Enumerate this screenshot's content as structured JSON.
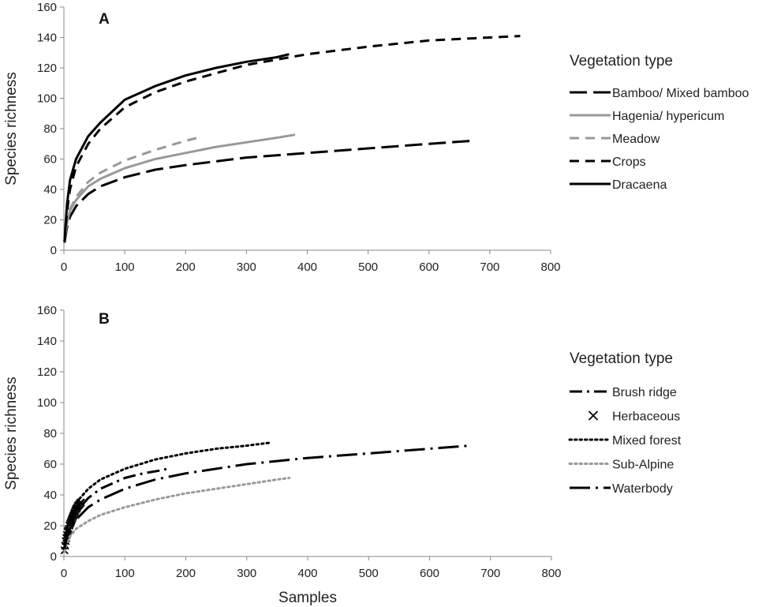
{
  "chart_data": [
    {
      "type": "line",
      "panel_label": "A",
      "xlabel": "",
      "ylabel": "Species richness",
      "xlim": [
        0,
        800
      ],
      "ylim": [
        0,
        160
      ],
      "xticks": [
        0,
        100,
        200,
        300,
        400,
        500,
        600,
        700,
        800
      ],
      "yticks": [
        0,
        20,
        40,
        60,
        80,
        100,
        120,
        140,
        160
      ],
      "legend_title": "Vegetation type",
      "legend_position": "right",
      "series": [
        {
          "name": "Bamboo/ Mixed bamboo",
          "color": "#000000",
          "style": "longdash",
          "x": [
            1,
            5,
            10,
            20,
            40,
            60,
            100,
            150,
            200,
            300,
            400,
            500,
            600,
            670
          ],
          "y": [
            5,
            15,
            22,
            29,
            37,
            42,
            48,
            53,
            56,
            61,
            64,
            67,
            70,
            72
          ]
        },
        {
          "name": "Hagenia/ hypericum",
          "color": "#999999",
          "style": "solid",
          "x": [
            1,
            5,
            10,
            20,
            40,
            60,
            100,
            150,
            200,
            250,
            300,
            350,
            380
          ],
          "y": [
            6,
            18,
            26,
            33,
            42,
            47,
            54,
            60,
            64,
            68,
            71,
            74,
            76
          ]
        },
        {
          "name": "Meadow",
          "color": "#999999",
          "style": "dash",
          "x": [
            1,
            5,
            10,
            20,
            40,
            60,
            100,
            150,
            200,
            220
          ],
          "y": [
            6,
            19,
            27,
            35,
            45,
            51,
            59,
            66,
            72,
            74
          ]
        },
        {
          "name": "Crops",
          "color": "#000000",
          "style": "dash",
          "x": [
            1,
            5,
            10,
            20,
            40,
            60,
            100,
            150,
            200,
            300,
            400,
            500,
            600,
            700,
            750
          ],
          "y": [
            6,
            25,
            40,
            55,
            70,
            80,
            94,
            104,
            111,
            122,
            129,
            134,
            138,
            140,
            141
          ]
        },
        {
          "name": "Dracaena",
          "color": "#000000",
          "style": "solid",
          "x": [
            1,
            5,
            10,
            20,
            40,
            60,
            100,
            150,
            200,
            250,
            300,
            350,
            370
          ],
          "y": [
            6,
            30,
            46,
            60,
            75,
            84,
            99,
            108,
            115,
            120,
            124,
            127,
            129
          ]
        }
      ]
    },
    {
      "type": "line",
      "panel_label": "B",
      "xlabel": "Samples",
      "ylabel": "Species richness",
      "xlim": [
        0,
        800
      ],
      "ylim": [
        0,
        160
      ],
      "xticks": [
        0,
        100,
        200,
        300,
        400,
        500,
        600,
        700,
        800
      ],
      "yticks": [
        0,
        20,
        40,
        60,
        80,
        100,
        120,
        140,
        160
      ],
      "legend_title": "Vegetation type",
      "legend_position": "right",
      "series": [
        {
          "name": "Brush ridge",
          "color": "#000000",
          "style": "dashdot",
          "x": [
            1,
            5,
            10,
            20,
            40,
            60,
            100,
            130,
            160,
            170
          ],
          "y": [
            5,
            14,
            21,
            29,
            38,
            44,
            51,
            54,
            56,
            57
          ]
        },
        {
          "name": "Herbaceous",
          "color": "#000000",
          "style": "x-markers",
          "x": [
            1,
            2,
            3,
            4,
            5,
            6,
            7,
            8,
            9,
            10,
            11,
            12,
            13,
            14,
            15,
            16,
            17,
            18,
            19,
            20,
            21,
            22,
            23,
            24,
            25,
            26,
            27,
            28
          ],
          "y": [
            4,
            7,
            10,
            12,
            14,
            16,
            17,
            18,
            20,
            21,
            22,
            23,
            24,
            25,
            26,
            27,
            28,
            29,
            30,
            31,
            31,
            32,
            33,
            33,
            34,
            34,
            35,
            35
          ]
        },
        {
          "name": "Mixed forest",
          "color": "#000000",
          "style": "dotted",
          "x": [
            1,
            5,
            10,
            20,
            40,
            60,
            100,
            150,
            200,
            250,
            300,
            340
          ],
          "y": [
            6,
            18,
            26,
            35,
            44,
            50,
            57,
            63,
            67,
            70,
            72,
            74
          ]
        },
        {
          "name": "Sub-Alpine",
          "color": "#999999",
          "style": "dotted",
          "x": [
            1,
            5,
            10,
            20,
            40,
            60,
            100,
            150,
            200,
            250,
            300,
            350,
            370
          ],
          "y": [
            3,
            9,
            13,
            18,
            23,
            27,
            32,
            37,
            41,
            44,
            47,
            50,
            51
          ]
        },
        {
          "name": "Waterbody",
          "color": "#000000",
          "style": "dashdotlong",
          "x": [
            1,
            5,
            10,
            20,
            40,
            60,
            100,
            150,
            200,
            300,
            400,
            500,
            600,
            665
          ],
          "y": [
            5,
            13,
            18,
            24,
            32,
            37,
            44,
            50,
            54,
            60,
            64,
            67,
            70,
            72
          ]
        }
      ]
    }
  ]
}
